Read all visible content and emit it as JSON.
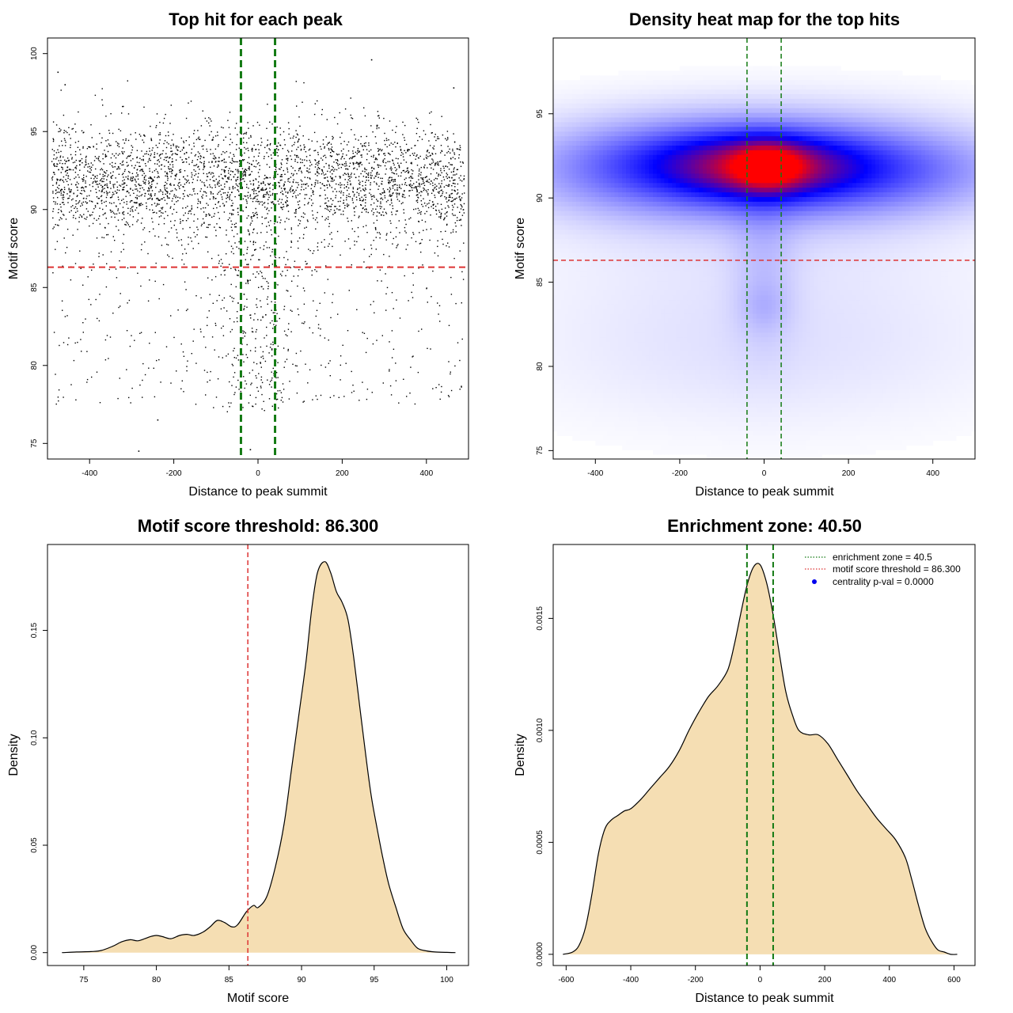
{
  "chart_data": [
    {
      "type": "scatter",
      "title": "Top hit for each peak",
      "xlabel": "Distance to peak summit",
      "ylabel": "Motif score",
      "xlim": [
        -500,
        500
      ],
      "ylim": [
        74,
        101
      ],
      "xticks": [
        -400,
        -200,
        0,
        200,
        400
      ],
      "yticks": [
        75,
        80,
        85,
        90,
        95,
        100
      ],
      "threshold_y": 86.3,
      "threshold_color": "#dd3333",
      "zone_x": [
        -40.5,
        40.5
      ],
      "zone_color": "#137a13",
      "point_color": "#000000",
      "n_points_approx": 4000,
      "score_distribution": {
        "main_center": 91.8,
        "main_sd": 1.8,
        "tail_min": 74.5,
        "tail_max": 99.6
      },
      "sample_points": [
        {
          "x": -283,
          "y": 74.5
        },
        {
          "x": 270,
          "y": 99.6
        },
        {
          "x": -475,
          "y": 98.8
        },
        {
          "x": -458,
          "y": 98.0
        },
        {
          "x": 465,
          "y": 97.8
        },
        {
          "x": -18,
          "y": 74.6
        },
        {
          "x": -238,
          "y": 76.5
        }
      ]
    },
    {
      "type": "heatmap",
      "title": "Density heat map for the top hits",
      "xlabel": "Distance to peak summit",
      "ylabel": "Motif score",
      "xlim": [
        -500,
        500
      ],
      "ylim": [
        74.5,
        99.5
      ],
      "xticks": [
        -400,
        -200,
        0,
        200,
        400
      ],
      "yticks": [
        75,
        80,
        85,
        90,
        95
      ],
      "colors": [
        "#ffffff",
        "#0000ff",
        "#ff0000"
      ],
      "peak": {
        "x": 10,
        "y": 91.8
      },
      "threshold_y": 86.3,
      "threshold_color": "#dd3333",
      "zone_x": [
        -40.5,
        40.5
      ],
      "zone_color": "#137a13"
    },
    {
      "type": "area",
      "title": "Motif score threshold: 86.300",
      "xlabel": "Motif score",
      "ylabel": "Density",
      "xlim": [
        72.5,
        101.5
      ],
      "ylim": [
        -0.006,
        0.19
      ],
      "xticks": [
        75,
        80,
        85,
        90,
        95,
        100
      ],
      "yticks": [
        0.0,
        0.05,
        0.1,
        0.15
      ],
      "ytick_labels": [
        "0.00",
        "0.05",
        "0.10",
        "0.15"
      ],
      "fill_color": "#f5deb3",
      "threshold_x": 86.3,
      "threshold_color": "#dd3333",
      "x": [
        73.5,
        74.5,
        75.5,
        76.2,
        77,
        77.6,
        78.2,
        78.7,
        79.2,
        79.6,
        80,
        80.4,
        81,
        81.6,
        82.1,
        82.6,
        83.2,
        83.7,
        84.2,
        84.7,
        85.2,
        85.6,
        86.2,
        86.7,
        87,
        87.6,
        88.2,
        88.8,
        89.3,
        89.8,
        90.3,
        90.7,
        91.1,
        91.6,
        92,
        92.4,
        92.8,
        93.2,
        93.6,
        94,
        94.4,
        94.8,
        95.2,
        95.6,
        96,
        96.5,
        97,
        97.5,
        98,
        98.6,
        99.2,
        100,
        100.6
      ],
      "y": [
        0.0,
        0.0003,
        0.0005,
        0.001,
        0.003,
        0.005,
        0.006,
        0.0055,
        0.0065,
        0.0075,
        0.008,
        0.0075,
        0.0065,
        0.008,
        0.0085,
        0.008,
        0.0095,
        0.012,
        0.015,
        0.014,
        0.012,
        0.013,
        0.019,
        0.022,
        0.021,
        0.026,
        0.04,
        0.06,
        0.085,
        0.11,
        0.135,
        0.16,
        0.177,
        0.182,
        0.177,
        0.168,
        0.163,
        0.155,
        0.137,
        0.115,
        0.093,
        0.073,
        0.058,
        0.044,
        0.032,
        0.021,
        0.011,
        0.006,
        0.002,
        0.0008,
        0.0003,
        0.0001,
        0.0
      ]
    },
    {
      "type": "area",
      "title": "Enrichment zone: 40.50",
      "xlabel": "Distance to peak summit",
      "ylabel": "Density",
      "xlim": [
        -640,
        665
      ],
      "ylim": [
        -5e-05,
        0.00183
      ],
      "xticks": [
        -600,
        -400,
        -200,
        0,
        200,
        400,
        600
      ],
      "yticks": [
        0.0,
        0.0005,
        0.001,
        0.0015
      ],
      "ytick_labels": [
        "0.0000",
        "0.0005",
        "0.0010",
        "0.0015"
      ],
      "fill_color": "#f5deb3",
      "zone_x": [
        -40.5,
        40.5
      ],
      "zone_color": "#137a13",
      "legend_position": "top-right",
      "legend": [
        {
          "label": "enrichment zone = 40.5",
          "style": "dotted",
          "color": "#137a13"
        },
        {
          "label": "motif score threshold = 86.300",
          "style": "dotted",
          "color": "#dd3333"
        },
        {
          "label": "centrality p-val = 0.0000",
          "style": "point",
          "color": "#0000ee"
        }
      ],
      "x": [
        -610,
        -580,
        -560,
        -540,
        -520,
        -500,
        -480,
        -460,
        -440,
        -420,
        -400,
        -370,
        -340,
        -310,
        -280,
        -250,
        -220,
        -190,
        -160,
        -130,
        -100,
        -80,
        -60,
        -40,
        -20,
        0,
        20,
        40,
        60,
        80,
        100,
        120,
        150,
        180,
        210,
        240,
        270,
        300,
        330,
        360,
        390,
        420,
        450,
        470,
        490,
        510,
        530,
        550,
        570,
        590,
        610
      ],
      "y": [
        0.0,
        1e-05,
        4e-05,
        0.00012,
        0.00027,
        0.00045,
        0.00056,
        0.0006,
        0.00062,
        0.00064,
        0.00065,
        0.00069,
        0.00074,
        0.00079,
        0.00084,
        0.00091,
        0.001,
        0.00108,
        0.00115,
        0.0012,
        0.00127,
        0.00138,
        0.00152,
        0.00165,
        0.00173,
        0.00174,
        0.00166,
        0.00152,
        0.00134,
        0.00117,
        0.00107,
        0.001,
        0.00098,
        0.00098,
        0.00094,
        0.00087,
        0.0008,
        0.00073,
        0.00067,
        0.00061,
        0.00056,
        0.00051,
        0.00043,
        0.00033,
        0.00022,
        0.00012,
        6e-05,
        2e-05,
        1e-05,
        0.0,
        0.0
      ]
    }
  ]
}
